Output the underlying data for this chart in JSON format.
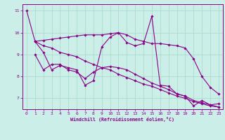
{
  "xlabel": "Windchill (Refroidissement éolien,°C)",
  "bg_color": "#cceee8",
  "line_color": "#880088",
  "grid_color": "#aaddcc",
  "ylim": [
    6.5,
    11.3
  ],
  "xlim": [
    -0.5,
    23.5
  ],
  "yticks": [
    7,
    8,
    9,
    10,
    11
  ],
  "xticks": [
    0,
    1,
    2,
    3,
    4,
    5,
    6,
    7,
    8,
    9,
    10,
    11,
    12,
    13,
    14,
    15,
    16,
    17,
    18,
    19,
    20,
    21,
    22,
    23
  ],
  "line1_x": [
    0,
    1,
    2,
    3,
    4,
    5,
    6,
    7,
    8,
    9,
    10,
    11,
    12,
    13,
    14,
    15,
    16,
    17,
    18,
    19,
    20,
    21,
    22,
    23
  ],
  "line1_y": [
    11.0,
    9.6,
    9.1,
    8.3,
    8.5,
    8.4,
    8.3,
    7.6,
    7.8,
    9.35,
    9.8,
    10.0,
    9.55,
    9.4,
    9.5,
    10.75,
    7.6,
    7.55,
    7.2,
    7.1,
    6.65,
    6.9,
    6.7,
    6.75
  ],
  "line2_x": [
    1,
    2,
    3,
    4,
    5,
    6,
    7,
    8,
    9,
    10,
    11,
    12,
    13,
    14,
    15,
    16,
    17,
    18,
    19,
    20,
    21,
    22,
    23
  ],
  "line2_y": [
    9.6,
    9.65,
    9.7,
    9.75,
    9.8,
    9.85,
    9.9,
    9.9,
    9.9,
    9.95,
    10.0,
    9.9,
    9.7,
    9.6,
    9.5,
    9.5,
    9.45,
    9.4,
    9.3,
    8.8,
    8.0,
    7.5,
    7.2
  ],
  "line3_x": [
    1,
    2,
    3,
    4,
    5,
    6,
    7,
    8,
    9,
    10,
    11,
    12,
    13,
    14,
    15,
    16,
    17,
    18,
    19,
    20,
    21,
    22,
    23
  ],
  "line3_y": [
    9.0,
    8.3,
    8.55,
    8.55,
    8.3,
    8.2,
    7.9,
    8.2,
    8.4,
    8.45,
    8.4,
    8.3,
    8.1,
    7.9,
    7.7,
    7.55,
    7.4,
    7.2,
    7.1,
    6.9,
    6.8,
    6.7,
    6.6
  ],
  "line4_x": [
    1,
    2,
    3,
    4,
    5,
    6,
    7,
    8,
    9,
    10,
    11,
    12,
    13,
    14,
    15,
    16,
    17,
    18,
    19,
    20,
    21,
    22,
    23
  ],
  "line4_y": [
    9.6,
    9.4,
    9.3,
    9.1,
    9.0,
    8.9,
    8.7,
    8.55,
    8.4,
    8.3,
    8.1,
    7.95,
    7.8,
    7.65,
    7.55,
    7.4,
    7.25,
    7.1,
    7.0,
    6.85,
    6.75,
    6.65,
    6.6
  ]
}
